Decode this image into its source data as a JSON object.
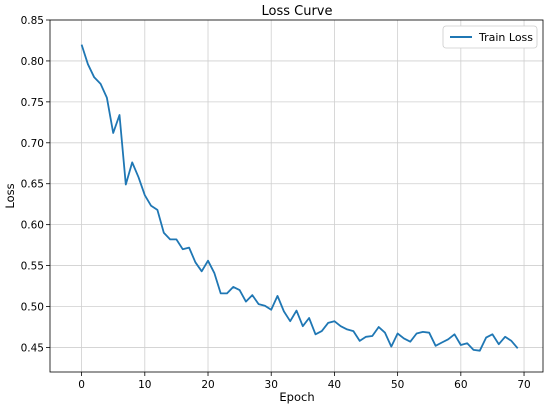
{
  "chart_data": {
    "type": "line",
    "title": "Loss Curve",
    "xlabel": "Epoch",
    "ylabel": "Loss",
    "xlim": [
      -5,
      73
    ],
    "ylim": [
      0.42,
      0.85
    ],
    "xticks": [
      0,
      10,
      20,
      30,
      40,
      50,
      60,
      70
    ],
    "yticks": [
      0.45,
      0.5,
      0.55,
      0.6,
      0.65,
      0.7,
      0.75,
      0.8,
      0.85
    ],
    "grid": true,
    "legend_position": "top-right",
    "series": [
      {
        "name": "Train Loss",
        "color": "#1f77b4",
        "x": [
          0,
          1,
          2,
          3,
          4,
          5,
          6,
          7,
          8,
          9,
          10,
          11,
          12,
          13,
          14,
          15,
          16,
          17,
          18,
          19,
          20,
          21,
          22,
          23,
          24,
          25,
          26,
          27,
          28,
          29,
          30,
          31,
          32,
          33,
          34,
          35,
          36,
          37,
          38,
          39,
          40,
          41,
          42,
          43,
          44,
          45,
          46,
          47,
          48,
          49,
          50,
          51,
          52,
          53,
          54,
          55,
          56,
          57,
          58,
          59,
          60,
          61,
          62,
          63,
          64,
          65,
          66,
          67,
          68,
          69
        ],
        "values": [
          0.82,
          0.796,
          0.78,
          0.772,
          0.755,
          0.712,
          0.734,
          0.649,
          0.676,
          0.658,
          0.636,
          0.623,
          0.618,
          0.59,
          0.582,
          0.582,
          0.57,
          0.572,
          0.554,
          0.543,
          0.556,
          0.541,
          0.516,
          0.516,
          0.524,
          0.52,
          0.506,
          0.514,
          0.503,
          0.501,
          0.496,
          0.513,
          0.494,
          0.482,
          0.495,
          0.476,
          0.486,
          0.466,
          0.47,
          0.48,
          0.482,
          0.476,
          0.472,
          0.47,
          0.458,
          0.463,
          0.464,
          0.475,
          0.468,
          0.451,
          0.467,
          0.461,
          0.457,
          0.467,
          0.469,
          0.468,
          0.452,
          0.456,
          0.46,
          0.466,
          0.453,
          0.455,
          0.447,
          0.446,
          0.462,
          0.466,
          0.454,
          0.463,
          0.458,
          0.449
        ]
      }
    ]
  }
}
